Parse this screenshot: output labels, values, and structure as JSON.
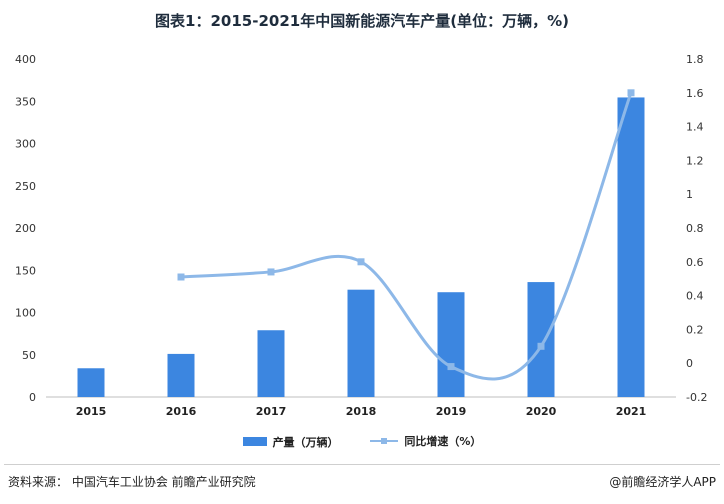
{
  "chart_data": {
    "type": "bar",
    "title": "图表1：2015-2021年中国新能源汽车产量(单位：万辆，%)",
    "categories": [
      "2015",
      "2016",
      "2017",
      "2018",
      "2019",
      "2020",
      "2021"
    ],
    "series": [
      {
        "name": "产量（万辆）",
        "type": "bar",
        "axis": "left",
        "values": [
          34,
          51,
          79,
          127,
          124,
          136,
          354.5
        ],
        "color": "#3c86e0"
      },
      {
        "name": "同比增速（%）",
        "type": "line",
        "axis": "right",
        "values": [
          null,
          0.51,
          0.54,
          0.6,
          -0.02,
          0.1,
          1.6
        ],
        "color": "#8db8e8"
      }
    ],
    "y_left": {
      "ylim": [
        0,
        400
      ],
      "ticks": [
        "0",
        "50",
        "100",
        "150",
        "200",
        "250",
        "300",
        "350",
        "400"
      ]
    },
    "y_right": {
      "ylim": [
        -0.2,
        1.8
      ],
      "ticks": [
        "-0.2",
        "0",
        "0.2",
        "0.4",
        "0.6",
        "0.8",
        "1",
        "1.2",
        "1.4",
        "1.6",
        "1.8"
      ]
    },
    "grid": false,
    "legend": "bottom-center"
  },
  "footer": {
    "source": "资料来源： 中国汽车工业协会 前瞻产业研究院",
    "credit": "@前瞻经济学人APP"
  }
}
